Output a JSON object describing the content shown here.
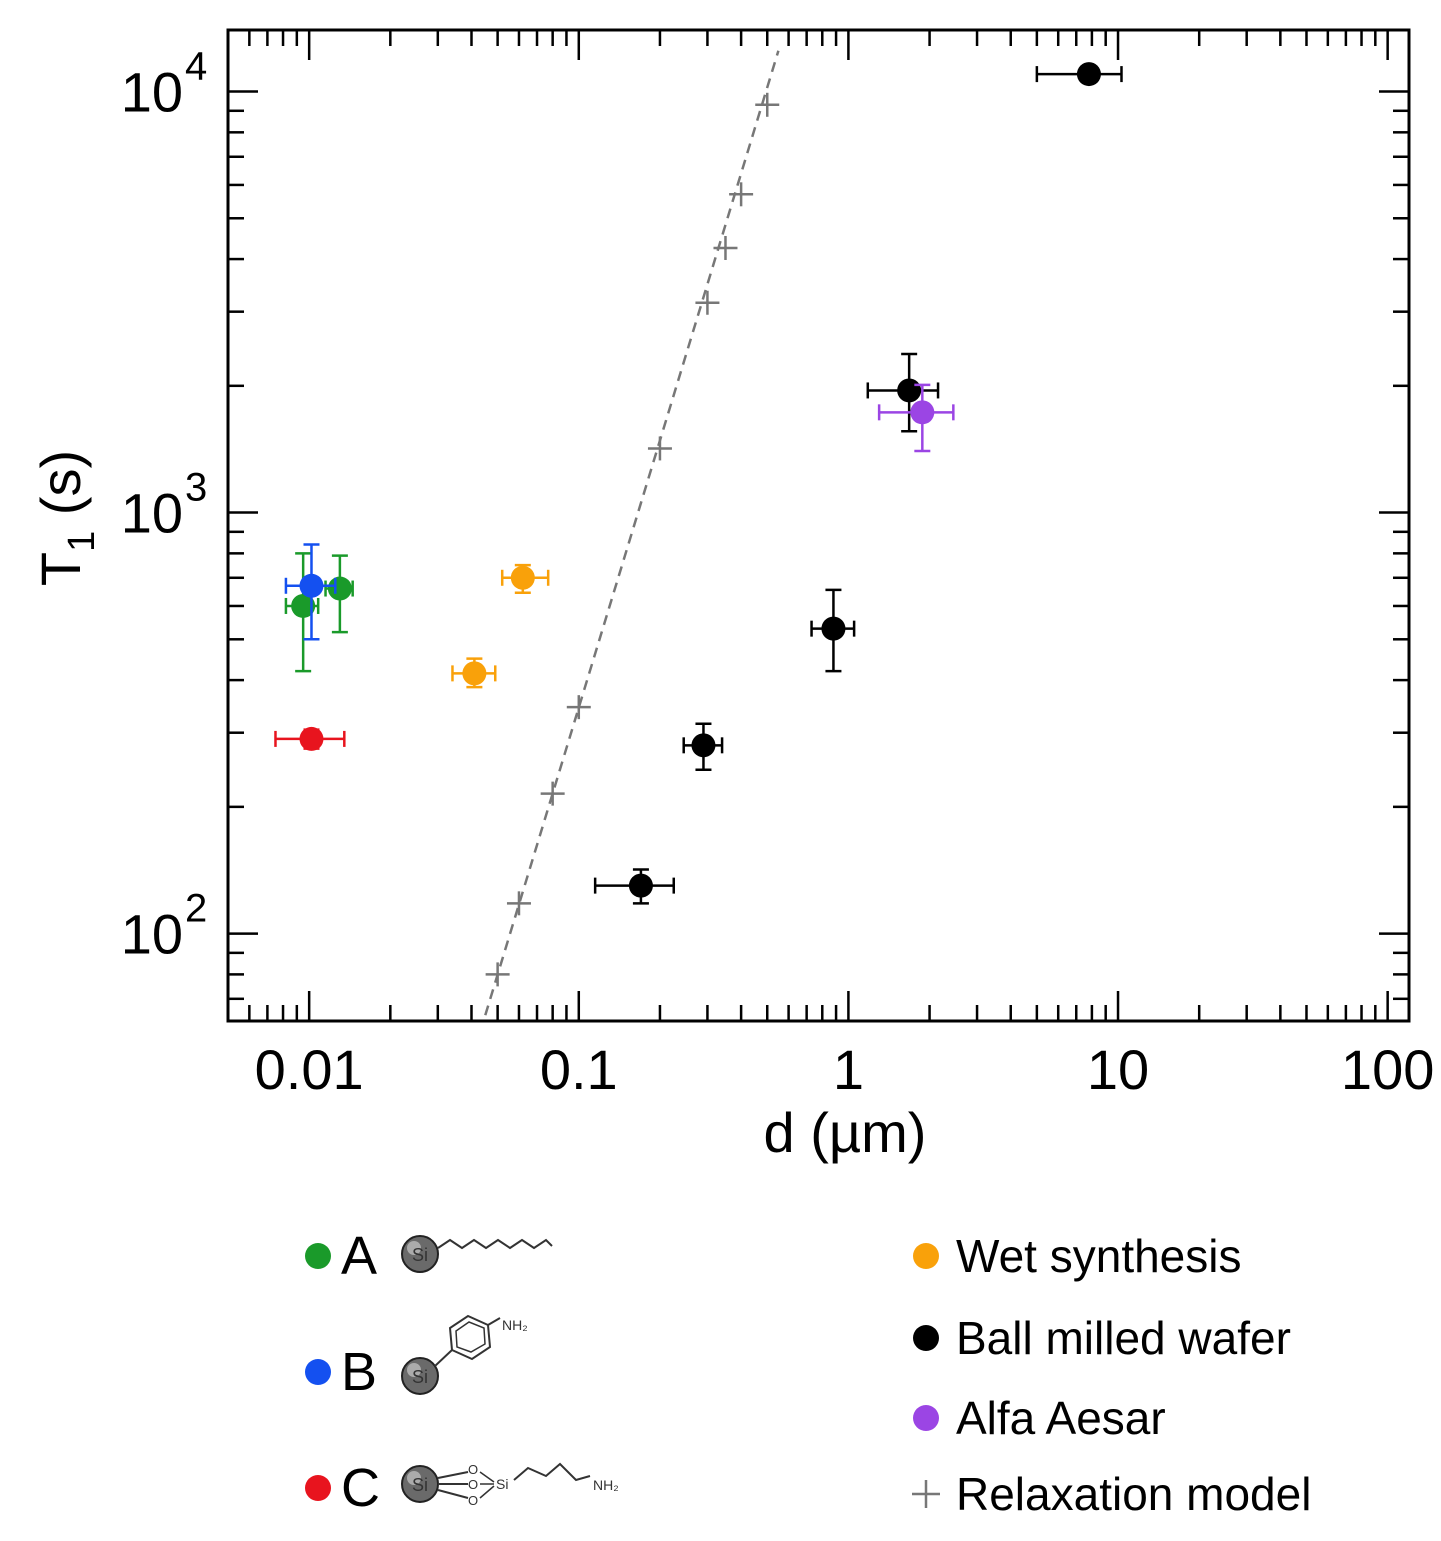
{
  "chart_data": {
    "type": "scatter",
    "xlabel": "d (µm)",
    "ylabel_main": "T",
    "ylabel_sub": "1",
    "ylabel_tail": " (s)",
    "xscale": "log",
    "yscale": "log",
    "xlim": [
      0.005,
      120
    ],
    "ylim": [
      62,
      14000
    ],
    "x_ticks": [
      {
        "value": 0.01,
        "label": "0.01"
      },
      {
        "value": 0.1,
        "label": "0.1"
      },
      {
        "value": 1,
        "label": "1"
      },
      {
        "value": 10,
        "label": "10"
      },
      {
        "value": 100,
        "label": "100"
      }
    ],
    "y_ticks": [
      {
        "value": 100,
        "base": "10",
        "exp": "2"
      },
      {
        "value": 1000,
        "base": "10",
        "exp": "3"
      },
      {
        "value": 10000,
        "base": "10",
        "exp": "4"
      }
    ],
    "series": [
      {
        "name": "A",
        "color": "#1a9a2a",
        "points": [
          {
            "x": 0.0095,
            "y": 600,
            "xlo": 0.0082,
            "xhi": 0.0108,
            "ylo": 420,
            "yhi": 800
          },
          {
            "x": 0.013,
            "y": 660,
            "xlo": 0.0115,
            "xhi": 0.0145,
            "ylo": 520,
            "yhi": 790
          }
        ]
      },
      {
        "name": "B",
        "color": "#1450f0",
        "points": [
          {
            "x": 0.0102,
            "y": 670,
            "xlo": 0.0082,
            "xhi": 0.0125,
            "ylo": 500,
            "yhi": 840
          }
        ]
      },
      {
        "name": "C",
        "color": "#e8141e",
        "points": [
          {
            "x": 0.0102,
            "y": 290,
            "xlo": 0.0075,
            "xhi": 0.0135,
            "ylo": 275,
            "yhi": 305
          }
        ]
      },
      {
        "name": "Wet synthesis",
        "color": "#f9a10a",
        "points": [
          {
            "x": 0.041,
            "y": 415,
            "xlo": 0.034,
            "xhi": 0.049,
            "ylo": 385,
            "yhi": 450
          },
          {
            "x": 0.062,
            "y": 700,
            "xlo": 0.052,
            "xhi": 0.077,
            "ylo": 645,
            "yhi": 750
          }
        ]
      },
      {
        "name": "Ball milled wafer",
        "color": "#000000",
        "points": [
          {
            "x": 0.17,
            "y": 130,
            "xlo": 0.115,
            "xhi": 0.225,
            "ylo": 118,
            "yhi": 142
          },
          {
            "x": 0.29,
            "y": 280,
            "xlo": 0.245,
            "xhi": 0.34,
            "ylo": 245,
            "yhi": 315
          },
          {
            "x": 0.88,
            "y": 530,
            "xlo": 0.73,
            "xhi": 1.05,
            "ylo": 420,
            "yhi": 655
          },
          {
            "x": 1.68,
            "y": 1950,
            "xlo": 1.18,
            "xhi": 2.15,
            "ylo": 1560,
            "yhi": 2380
          },
          {
            "x": 7.8,
            "y": 11000,
            "xlo": 5.0,
            "xhi": 10.3,
            "ylo": 10700,
            "yhi": 11300
          }
        ]
      },
      {
        "name": "Alfa Aesar",
        "color": "#9b45e4",
        "points": [
          {
            "x": 1.88,
            "y": 1730,
            "xlo": 1.3,
            "xhi": 2.45,
            "ylo": 1400,
            "yhi": 2010
          }
        ]
      }
    ],
    "model": {
      "name": "Relaxation model",
      "color": "#777777",
      "x": [
        0.05,
        0.06,
        0.08,
        0.1,
        0.2,
        0.3,
        0.35,
        0.4,
        0.5
      ],
      "y": [
        80,
        118,
        215,
        345,
        1420,
        3150,
        4250,
        5700,
        9300
      ],
      "line_x": [
        0.045,
        0.55
      ],
      "line_y": [
        64,
        12500
      ]
    },
    "legend": {
      "left": [
        {
          "marker_color": "#1a9a2a",
          "letter": "A",
          "molecule": "Si-alkyl chain"
        },
        {
          "marker_color": "#1450f0",
          "letter": "B",
          "molecule": "Si-aminophenyl"
        },
        {
          "marker_color": "#e8141e",
          "letter": "C",
          "molecule": "Si-O3-Si-aminopropyl"
        }
      ],
      "right": [
        {
          "marker_color": "#f9a10a",
          "label": "Wet synthesis",
          "marker": "circle"
        },
        {
          "marker_color": "#000000",
          "label": "Ball milled wafer",
          "marker": "circle"
        },
        {
          "marker_color": "#9b45e4",
          "label": "Alfa Aesar",
          "marker": "circle"
        },
        {
          "marker_color": "#777777",
          "label": "Relaxation model",
          "marker": "plus"
        }
      ],
      "si_label": "Si",
      "nh2_label": "NH₂",
      "o_label": "O",
      "si_small_label": "Si"
    }
  }
}
